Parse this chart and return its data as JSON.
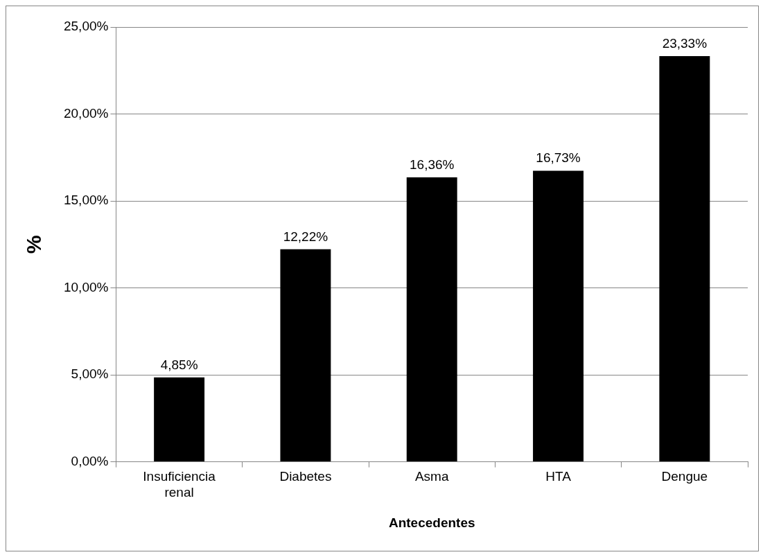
{
  "chart_data": {
    "type": "bar",
    "xlabel": "Antecedentes",
    "ylabel": "%",
    "categories": [
      "Insuficiencia renal",
      "Diabetes",
      "Asma",
      "HTA",
      "Dengue"
    ],
    "values": [
      4.85,
      12.22,
      16.36,
      16.73,
      23.33
    ],
    "value_labels": [
      "4,85%",
      "12,22%",
      "16,36%",
      "16,73%",
      "23,33%"
    ],
    "color": "#000000",
    "ylim": [
      0,
      25
    ],
    "yticks": [
      {
        "value": 0,
        "label": "0,00%"
      },
      {
        "value": 5,
        "label": "5,00%"
      },
      {
        "value": 10,
        "label": "10,00%"
      },
      {
        "value": 15,
        "label": "15,00%"
      },
      {
        "value": 20,
        "label": "20,00%"
      },
      {
        "value": 25,
        "label": "25,00%"
      }
    ],
    "grid": "y",
    "legend": false
  }
}
